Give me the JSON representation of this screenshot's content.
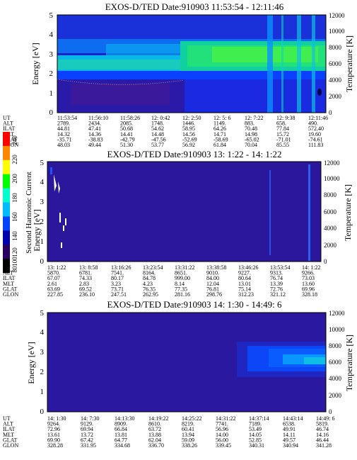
{
  "colorbar": {
    "label": "Second Harmonic Current",
    "ticks": [
      "240",
      "220",
      "200",
      "180",
      "160",
      "140",
      "120",
      "100",
      "80"
    ],
    "colors": [
      "#ff0000",
      "#ff8800",
      "#ffff00",
      "#00ff00",
      "#00ffcc",
      "#00bbff",
      "#0044ff",
      "#0000aa",
      "#2a0060",
      "#000000"
    ]
  },
  "chart_data": [
    {
      "type": "heatmap",
      "title": "EXOS-D/TED   Date:910903  11:53:54 - 12:11:46",
      "ylabel": "Energy [eV]",
      "y2label": "Temperature [K]",
      "yticks": [
        "0",
        "1",
        "2",
        "3",
        "4",
        "5"
      ],
      "y2ticks": [
        "0",
        "2000",
        "4000",
        "6000",
        "8000",
        "10000",
        "12000"
      ],
      "ylim": [
        0,
        5
      ],
      "y2lim": [
        0,
        12000
      ],
      "rows": [
        {
          "label": "UT",
          "values": [
            "11:53:54",
            "11:56:10",
            "11:58:26",
            "12: 0:42",
            "12: 2:50",
            "12: 5: 6",
            "12: 7:22",
            "12: 9:38",
            "12:11:46"
          ]
        },
        {
          "label": "ALT",
          "values": [
            "2789.",
            "2434.",
            "2085.",
            "1748.",
            "1446.",
            "1149.",
            "883.",
            "658.",
            "490."
          ]
        },
        {
          "label": "ILAT",
          "values": [
            "44.81",
            "47.41",
            "50.68",
            "54.62",
            "58.95",
            "64.26",
            "70.48",
            "77.84",
            "572.40"
          ]
        },
        {
          "label": "MLT",
          "values": [
            "14.32",
            "14.36",
            "14.41",
            "14.48",
            "14.56",
            "14.71",
            "14.98",
            "15.72",
            "19.60"
          ]
        },
        {
          "label": "GLAT",
          "values": [
            "-35.71",
            "-38.83",
            "-42.79",
            "-47.56",
            "-52.69",
            "-58.69",
            "-65.02",
            "-71.01",
            "-74.61"
          ]
        },
        {
          "label": "GLON",
          "values": [
            "48.03",
            "49.44",
            "51.30",
            "53.77",
            "56.92",
            "61.84",
            "70.04",
            "85.55",
            "111.83"
          ]
        }
      ]
    },
    {
      "type": "heatmap",
      "title": "EXOS-D/TED   Date:910903  13: 1:22 - 14: 1:22",
      "ylabel": "Energy [eV]",
      "y2label": "Temperature [K]",
      "yticks": [
        "0",
        "1",
        "2",
        "3",
        "4",
        "5"
      ],
      "y2ticks": [
        "0",
        "2000",
        "4000",
        "6000",
        "8000",
        "10000",
        "12000"
      ],
      "ylim": [
        0,
        5
      ],
      "y2lim": [
        0,
        12000
      ],
      "rows": [
        {
          "label": "UT",
          "values": [
            "13: 1:22",
            "13: 8:58",
            "13:16:26",
            "13:23:54",
            "13:31:22",
            "13:38:58",
            "13:46:26",
            "13:53:54",
            "14: 1:22"
          ]
        },
        {
          "label": "ALT",
          "values": [
            "5870.",
            "6781.",
            "7541.",
            "8164.",
            "8651.",
            "9010.",
            "9227.",
            "9313.",
            "9266."
          ]
        },
        {
          "label": "ILAT",
          "values": [
            "67.07",
            "74.33",
            "80.17",
            "84.78",
            "999.00",
            "84.00",
            "80.64",
            "76.74",
            "73.03"
          ]
        },
        {
          "label": "MLT",
          "values": [
            "2.61",
            "2.83",
            "3.23",
            "4.23",
            "8.14",
            "12.04",
            "13.01",
            "13.39",
            "13.60"
          ]
        },
        {
          "label": "GLAT",
          "values": [
            "63.69",
            "69.52",
            "73.71",
            "76.35",
            "77.35",
            "76.81",
            "75.14",
            "72.76",
            "69.96"
          ]
        },
        {
          "label": "GLON",
          "values": [
            "227.85",
            "236.10",
            "247.51",
            "262.95",
            "281.16",
            "298.76",
            "312.23",
            "321.12",
            "328.18"
          ]
        }
      ]
    },
    {
      "type": "heatmap",
      "title": "EXOS-D/TED   Date:910903  14: 1:30 - 14:49: 6",
      "ylabel": "Energy [eV]",
      "y2label": "Temperature [K]",
      "yticks": [
        "0",
        "1",
        "2",
        "3",
        "4",
        "5"
      ],
      "y2ticks": [
        "0",
        "2000",
        "4000",
        "6000",
        "8000",
        "10000",
        "12000"
      ],
      "ylim": [
        0,
        5
      ],
      "y2lim": [
        0,
        12000
      ],
      "rows": [
        {
          "label": "UT",
          "values": [
            "14: 1:30",
            "14: 7:30",
            "14:13:30",
            "14:19:22",
            "14:25:22",
            "14:31:22",
            "14:37:14",
            "14:43:14",
            "14:49: 6"
          ]
        },
        {
          "label": "ALT",
          "values": [
            "9264.",
            "9129.",
            "8909.",
            "8610.",
            "8219.",
            "7741.",
            "7189.",
            "6538.",
            "5819."
          ]
        },
        {
          "label": "ILAT",
          "values": [
            "72.96",
            "69.94",
            "66.84",
            "63.72",
            "60.41",
            "56.96",
            "53.49",
            "49.91",
            "46.74"
          ]
        },
        {
          "label": "MLT",
          "values": [
            "13.61",
            "13.72",
            "13.81",
            "13.88",
            "13.94",
            "14.00",
            "14.05",
            "14.11",
            "14.16"
          ]
        },
        {
          "label": "GLAT",
          "values": [
            "69.90",
            "67.42",
            "64.77",
            "62.04",
            "59.09",
            "56.00",
            "52.85",
            "49.57",
            "46.44"
          ]
        },
        {
          "label": "GLON",
          "values": [
            "328.28",
            "331.95",
            "334.68",
            "336.70",
            "338.26",
            "339.45",
            "340.31",
            "340.94",
            "341.28"
          ]
        }
      ]
    }
  ]
}
